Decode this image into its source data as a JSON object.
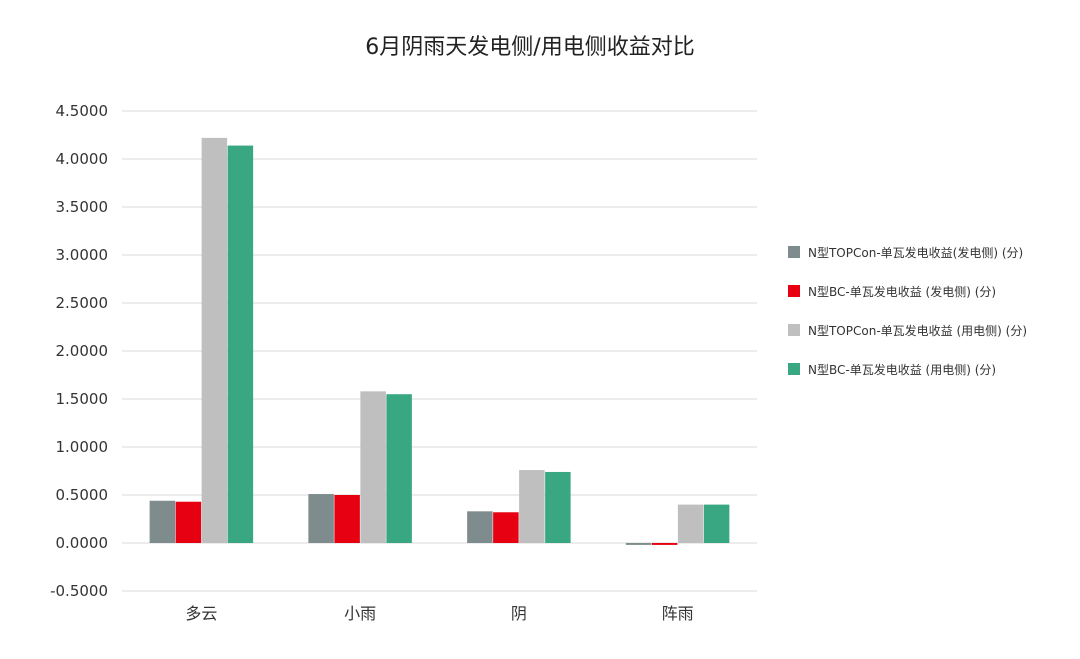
{
  "chart_data": {
    "type": "bar",
    "title": "6月阴雨天发电侧/用电侧收益对比",
    "xlabel": "",
    "ylabel": "",
    "categories": [
      "多云",
      "小雨",
      "阴",
      "阵雨"
    ],
    "ylim": [
      -0.5,
      4.5
    ],
    "yticks": [
      -0.5,
      0.0,
      0.5,
      1.0,
      1.5,
      2.0,
      2.5,
      3.0,
      3.5,
      4.0,
      4.5
    ],
    "ytick_labels": [
      "-0.5000",
      "0.0000",
      "0.5000",
      "1.0000",
      "1.5000",
      "2.0000",
      "2.5000",
      "3.0000",
      "3.5000",
      "4.0000",
      "4.5000"
    ],
    "grid": true,
    "legend_position": "right",
    "series": [
      {
        "name": "N型TOPCon-单瓦发电收益(发电侧) (分)",
        "color": "#7f8c8d",
        "values": [
          0.44,
          0.51,
          0.33,
          -0.02
        ]
      },
      {
        "name": "N型BC-单瓦发电收益 (发电侧) (分)",
        "color": "#e60012",
        "values": [
          0.43,
          0.5,
          0.32,
          -0.02
        ]
      },
      {
        "name": "N型TOPCon-单瓦发电收益 (用电侧) (分)",
        "color": "#bfbfbf",
        "values": [
          4.22,
          1.58,
          0.76,
          0.4
        ]
      },
      {
        "name": "N型BC-单瓦发电收益 (用电侧) (分)",
        "color": "#3aa783",
        "values": [
          4.14,
          1.55,
          0.74,
          0.4
        ]
      }
    ]
  }
}
